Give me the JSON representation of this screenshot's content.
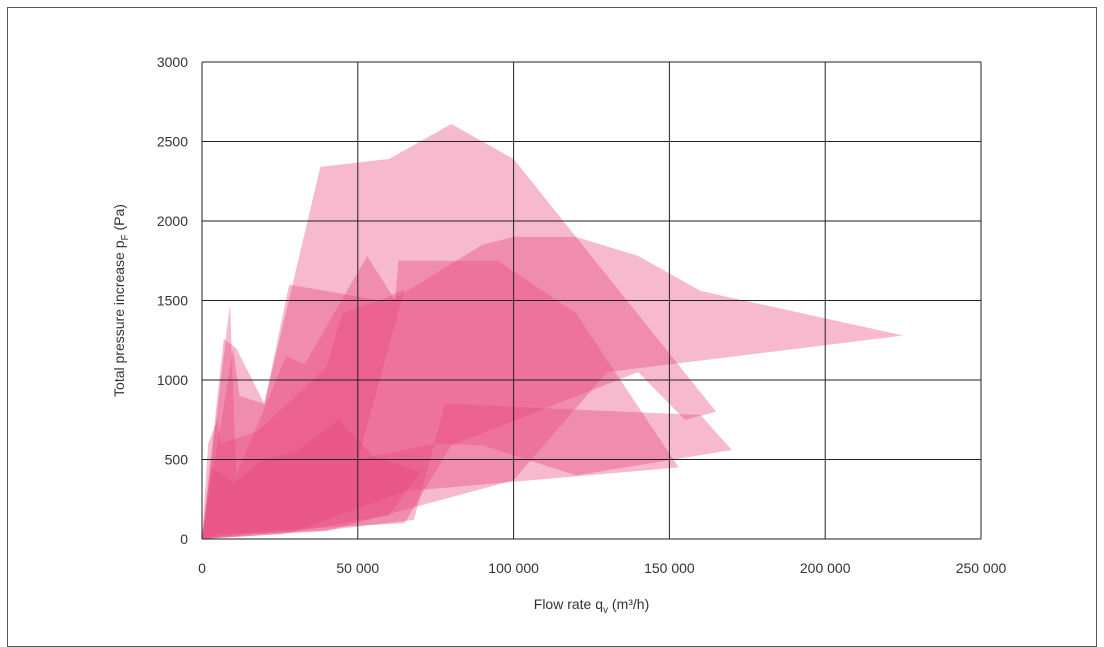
{
  "chart_data": {
    "type": "area",
    "xlabel": "Flow rate q",
    "xlabel_sub": "v",
    "xlabel_unit": " (m³/h)",
    "ylabel": "Total pressure increase p",
    "ylabel_sub": "F",
    "ylabel_unit": " (Pa)",
    "xlim": [
      0,
      250000
    ],
    "ylim": [
      0,
      3000
    ],
    "x_ticks": [
      0,
      50000,
      100000,
      150000,
      200000,
      250000
    ],
    "x_tick_labels": [
      "0",
      "50 000",
      "100 000",
      "150 000",
      "200 000",
      "250 000"
    ],
    "y_ticks": [
      0,
      500,
      1000,
      1500,
      2000,
      2500,
      3000
    ],
    "y_tick_labels": [
      "0",
      "500",
      "1000",
      "1500",
      "2000",
      "2500",
      "3000"
    ],
    "grid": true,
    "color": "#e8467f",
    "regions": [
      {
        "points": [
          [
            0,
            0
          ],
          [
            10000,
            1200
          ],
          [
            12000,
            900
          ],
          [
            20000,
            850
          ],
          [
            38000,
            2340
          ],
          [
            60000,
            2390
          ],
          [
            80000,
            2610
          ],
          [
            100000,
            2390
          ],
          [
            120000,
            1900
          ],
          [
            140000,
            1780
          ],
          [
            160000,
            1560
          ],
          [
            225000,
            1280
          ],
          [
            130000,
            1050
          ],
          [
            100000,
            370
          ],
          [
            40000,
            50
          ],
          [
            0,
            0
          ]
        ]
      },
      {
        "points": [
          [
            0,
            0
          ],
          [
            7000,
            1260
          ],
          [
            11000,
            1200
          ],
          [
            20000,
            850
          ],
          [
            28000,
            1600
          ],
          [
            60000,
            1490
          ],
          [
            90000,
            1850
          ],
          [
            100000,
            1900
          ],
          [
            120000,
            1900
          ],
          [
            165000,
            800
          ],
          [
            155000,
            750
          ],
          [
            140000,
            1050
          ],
          [
            80000,
            590
          ],
          [
            65000,
            100
          ],
          [
            20000,
            50
          ],
          [
            0,
            0
          ]
        ]
      },
      {
        "points": [
          [
            0,
            0
          ],
          [
            9000,
            1480
          ],
          [
            11000,
            400
          ],
          [
            27000,
            1150
          ],
          [
            33000,
            1100
          ],
          [
            53000,
            1780
          ],
          [
            62000,
            1500
          ],
          [
            63000,
            1750
          ],
          [
            95000,
            1750
          ],
          [
            120000,
            1420
          ],
          [
            153000,
            450
          ],
          [
            65000,
            300
          ],
          [
            30000,
            50
          ],
          [
            0,
            0
          ]
        ]
      },
      {
        "points": [
          [
            0,
            0
          ],
          [
            2000,
            600
          ],
          [
            5000,
            750
          ],
          [
            6000,
            600
          ],
          [
            18000,
            680
          ],
          [
            40000,
            1080
          ],
          [
            45000,
            1420
          ],
          [
            57000,
            1500
          ],
          [
            65000,
            1570
          ],
          [
            50000,
            500
          ],
          [
            75000,
            600
          ],
          [
            90000,
            590
          ],
          [
            120000,
            400
          ],
          [
            170000,
            560
          ],
          [
            160000,
            780
          ],
          [
            78000,
            850
          ],
          [
            68000,
            120
          ],
          [
            38000,
            50
          ],
          [
            5000,
            30
          ],
          [
            0,
            0
          ]
        ]
      },
      {
        "points": [
          [
            0,
            0
          ],
          [
            3000,
            450
          ],
          [
            10000,
            350
          ],
          [
            20000,
            500
          ],
          [
            30000,
            550
          ],
          [
            44000,
            750
          ],
          [
            46000,
            700
          ],
          [
            55000,
            520
          ],
          [
            70000,
            420
          ],
          [
            60000,
            150
          ],
          [
            40000,
            80
          ],
          [
            25000,
            30
          ],
          [
            0,
            0
          ]
        ]
      }
    ]
  }
}
